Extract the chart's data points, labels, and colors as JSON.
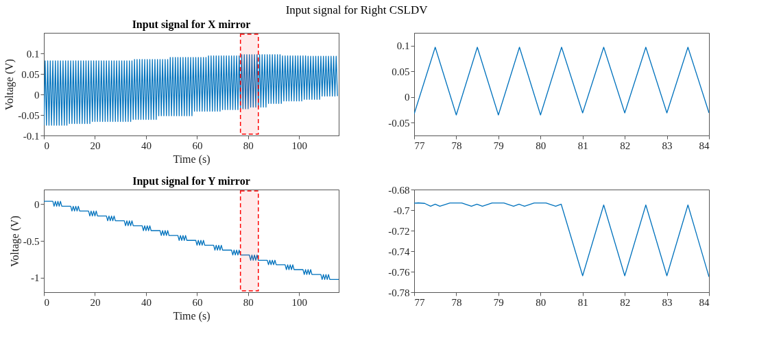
{
  "chart_data": [
    {
      "type": "line",
      "title": "Input signal for Right CSLDV",
      "subtitle": "Input signal for X mirror",
      "xlabel": "Time (s)",
      "ylabel": "Voltage (V)",
      "xlim": [
        0,
        115.5
      ],
      "xticks": [
        0,
        20,
        40,
        60,
        80,
        100
      ],
      "ylim": [
        -0.1,
        0.15
      ],
      "yticks": [
        -0.1,
        -0.05,
        0,
        0.05,
        0.1
      ],
      "bands": [
        {
          "axis": "x",
          "from": 77,
          "to": 84,
          "color": "#ff0000"
        }
      ],
      "x": [
        0,
        0.5,
        1,
        1.5,
        2,
        2.5,
        3,
        3.5,
        4,
        4.5,
        5,
        5.5,
        6,
        6.5,
        7,
        7.5,
        8,
        8.5,
        9,
        9.5,
        10,
        10.5,
        11,
        11.5,
        12,
        12.5,
        13,
        13.5,
        14,
        14.5,
        15,
        15.5,
        16,
        16.5,
        17,
        17.5,
        18,
        18.5,
        19,
        19.5,
        20,
        20.5,
        21,
        21.5,
        22,
        22.5,
        23,
        23.5,
        24,
        24.5,
        25,
        25.5,
        26,
        26.5,
        27,
        27.5,
        28,
        28.5,
        29,
        29.5,
        30,
        30.5,
        31,
        31.5,
        32,
        32.5,
        33,
        33.5,
        34,
        34.5,
        35,
        35.5,
        36,
        36.5,
        37,
        37.5,
        38,
        38.5,
        39,
        39.5,
        40,
        40.5,
        41,
        41.5,
        42,
        42.5,
        43,
        43.5,
        44,
        44.5,
        45,
        45.5,
        46,
        46.5,
        47,
        47.5,
        48,
        48.5,
        49,
        49.5,
        50,
        50.5,
        51,
        51.5,
        52,
        52.5,
        53,
        53.5,
        54,
        54.5,
        55,
        55.5,
        56,
        56.5,
        57,
        57.5,
        58,
        58.5,
        59,
        59.5,
        60,
        60.5,
        61,
        61.5,
        62,
        62.5,
        63,
        63.5,
        64,
        64.5,
        65,
        65.5,
        66,
        66.5,
        67,
        67.5,
        68,
        68.5,
        69,
        69.5,
        70,
        70.5,
        71,
        71.5,
        72,
        72.5,
        73,
        73.5,
        74,
        74.5,
        75,
        75.5,
        76,
        76.5,
        77,
        77.5,
        78,
        78.5,
        79,
        79.5,
        80,
        80.5,
        81,
        81.5,
        82,
        82.5,
        83,
        83.5,
        84,
        84.5,
        85,
        85.5,
        86,
        86.5,
        87,
        87.5,
        88,
        88.5,
        89,
        89.5,
        90,
        90.5,
        91,
        91.5,
        92,
        92.5,
        93,
        93.5,
        94,
        94.5,
        95,
        95.5,
        96,
        96.5,
        97,
        97.5,
        98,
        98.5,
        99,
        99.5,
        100,
        100.5,
        101,
        101.5,
        102,
        102.5,
        103,
        103.5,
        104,
        104.5,
        105,
        105.5,
        106,
        106.5,
        107,
        107.5,
        108,
        108.5,
        109,
        109.5,
        110,
        110.5,
        111,
        111.5,
        112,
        112.5,
        113,
        113.5,
        114,
        114.5,
        115
      ],
      "series": [
        {
          "color": "#0072bd",
          "values": [
            -0.075,
            0.082,
            -0.075,
            0.082,
            -0.075,
            0.082,
            -0.075,
            0.082,
            -0.075,
            0.082,
            -0.075,
            0.082,
            -0.075,
            0.082,
            -0.075,
            0.082,
            -0.075,
            0.082,
            -0.075,
            0.082,
            -0.071,
            0.082,
            -0.071,
            0.082,
            -0.071,
            0.082,
            -0.071,
            0.082,
            -0.071,
            0.082,
            -0.071,
            0.082,
            -0.071,
            0.082,
            -0.071,
            0.082,
            -0.071,
            0.082,
            -0.066,
            0.082,
            -0.066,
            0.082,
            -0.066,
            0.082,
            -0.066,
            0.082,
            -0.066,
            0.082,
            -0.066,
            0.082,
            -0.066,
            0.082,
            -0.066,
            0.082,
            -0.066,
            0.082,
            -0.066,
            0.082,
            -0.066,
            0.082,
            -0.066,
            0.082,
            -0.066,
            0.082,
            -0.066,
            0.082,
            -0.066,
            0.082,
            -0.066,
            0.082,
            -0.061,
            0.085,
            -0.061,
            0.085,
            -0.061,
            0.085,
            -0.061,
            0.085,
            -0.061,
            0.085,
            -0.061,
            0.085,
            -0.061,
            0.085,
            -0.061,
            0.085,
            -0.061,
            0.085,
            -0.061,
            0.085,
            -0.052,
            0.085,
            -0.052,
            0.085,
            -0.052,
            0.085,
            -0.052,
            0.085,
            -0.052,
            0.09,
            -0.052,
            0.09,
            -0.052,
            0.09,
            -0.052,
            0.09,
            -0.052,
            0.09,
            -0.052,
            0.09,
            -0.052,
            0.09,
            -0.052,
            0.09,
            -0.052,
            0.09,
            -0.052,
            0.09,
            -0.041,
            0.09,
            -0.041,
            0.09,
            -0.041,
            0.09,
            -0.041,
            0.09,
            -0.041,
            0.09,
            -0.041,
            0.094,
            -0.041,
            0.094,
            -0.041,
            0.094,
            -0.041,
            0.094,
            -0.041,
            0.094,
            -0.041,
            0.094,
            -0.037,
            0.094,
            -0.037,
            0.094,
            -0.037,
            0.094,
            -0.037,
            0.094,
            -0.037,
            0.094,
            -0.037,
            0.094,
            -0.037,
            0.094,
            -0.033,
            0.097,
            -0.035,
            0.097,
            -0.035,
            0.097,
            -0.035,
            0.097,
            -0.031,
            0.097,
            -0.031,
            0.097,
            -0.031,
            0.097,
            -0.031,
            0.097,
            -0.031,
            0.097,
            -0.031,
            0.097,
            -0.031,
            0.097,
            -0.022,
            0.097,
            -0.022,
            0.097,
            -0.022,
            0.097,
            -0.022,
            0.097,
            -0.022,
            0.097,
            -0.022,
            0.094,
            -0.016,
            0.094,
            -0.016,
            0.094,
            -0.016,
            0.094,
            -0.016,
            0.094,
            -0.016,
            0.094,
            -0.016,
            0.094,
            -0.016,
            0.094,
            -0.016,
            0.094,
            -0.012,
            0.094,
            -0.012,
            0.093,
            -0.012,
            0.093,
            -0.012,
            0.093,
            -0.012,
            0.093,
            -0.012,
            0.093,
            -0.012,
            0.093,
            -0.004,
            0.093,
            -0.004,
            0.093,
            -0.004,
            0.093,
            -0.004,
            0.093,
            -0.004,
            0.093,
            -0.004,
            0.093,
            -0.004
          ]
        }
      ]
    },
    {
      "type": "line",
      "xlim": [
        77,
        84
      ],
      "xticks": [
        77,
        78,
        79,
        80,
        81,
        82,
        83,
        84
      ],
      "ylim": [
        -0.075,
        0.125
      ],
      "yticks": [
        -0.05,
        0,
        0.05,
        0.1
      ],
      "x": [
        77,
        77.5,
        78,
        78.5,
        79,
        79.5,
        80,
        80.5,
        81,
        81.5,
        82,
        82.5,
        83,
        83.5,
        84
      ],
      "series": [
        {
          "color": "#0072bd",
          "values": [
            -0.033,
            0.097,
            -0.035,
            0.097,
            -0.035,
            0.097,
            -0.035,
            0.097,
            -0.031,
            0.097,
            -0.031,
            0.097,
            -0.031,
            0.097,
            -0.031
          ]
        }
      ]
    },
    {
      "type": "line",
      "title": "Input signal for Y mirror",
      "xlabel": "Time (s)",
      "ylabel": "Voltage (V)",
      "xlim": [
        0,
        115.5
      ],
      "xticks": [
        0,
        20,
        40,
        60,
        80,
        100
      ],
      "ylim": [
        -1.2,
        0.2
      ],
      "yticks": [
        -1,
        -0.5,
        0
      ],
      "bands": [
        {
          "axis": "x",
          "from": 77,
          "to": 84,
          "color": "#ff0000"
        }
      ],
      "x": [
        0,
        3.5,
        4,
        4.5,
        5,
        5.5,
        6,
        6.5,
        7,
        10.5,
        11,
        11.5,
        12,
        12.5,
        13,
        13.5,
        14,
        17.5,
        18,
        18.5,
        19,
        19.5,
        20,
        20.5,
        21,
        24.5,
        25,
        25.5,
        26,
        26.5,
        27,
        27.5,
        28,
        31.5,
        32,
        32.5,
        33,
        33.5,
        34,
        34.5,
        35,
        38.5,
        39,
        39.5,
        40,
        40.5,
        41,
        41.5,
        42,
        45.5,
        46,
        46.5,
        47,
        47.5,
        48,
        48.5,
        49,
        52.5,
        53,
        53.5,
        54,
        54.5,
        55,
        55.5,
        56,
        59.5,
        60,
        60.5,
        61,
        61.5,
        62,
        62.5,
        63,
        66.5,
        67,
        67.5,
        68,
        68.5,
        69,
        69.5,
        70,
        73.5,
        74,
        74.5,
        75,
        75.5,
        76,
        76.5,
        77,
        80.5,
        81,
        81.5,
        82,
        82.5,
        83,
        83.5,
        84,
        87.5,
        88,
        88.5,
        89,
        89.5,
        90,
        90.5,
        91,
        94.5,
        95,
        95.5,
        96,
        96.5,
        97,
        97.5,
        98,
        101.5,
        102,
        102.5,
        103,
        103.5,
        104,
        104.5,
        105,
        108.5,
        109,
        109.5,
        110,
        110.5,
        111,
        111.5,
        112,
        115.5
      ],
      "series": [
        {
          "color": "#0072bd",
          "values": [
            0.04,
            0.04,
            -0.027,
            0.04,
            -0.027,
            0.04,
            -0.027,
            0.04,
            -0.027,
            -0.027,
            -0.093,
            -0.027,
            -0.093,
            -0.027,
            -0.093,
            -0.027,
            -0.093,
            -0.093,
            -0.16,
            -0.093,
            -0.16,
            -0.093,
            -0.16,
            -0.093,
            -0.16,
            -0.16,
            -0.226,
            -0.16,
            -0.226,
            -0.16,
            -0.226,
            -0.16,
            -0.226,
            -0.226,
            -0.293,
            -0.226,
            -0.293,
            -0.226,
            -0.293,
            -0.226,
            -0.293,
            -0.293,
            -0.36,
            -0.293,
            -0.36,
            -0.293,
            -0.36,
            -0.293,
            -0.36,
            -0.36,
            -0.426,
            -0.36,
            -0.426,
            -0.36,
            -0.426,
            -0.36,
            -0.426,
            -0.426,
            -0.493,
            -0.426,
            -0.493,
            -0.426,
            -0.493,
            -0.426,
            -0.493,
            -0.493,
            -0.559,
            -0.493,
            -0.559,
            -0.493,
            -0.559,
            -0.493,
            -0.559,
            -0.559,
            -0.626,
            -0.559,
            -0.626,
            -0.559,
            -0.626,
            -0.559,
            -0.626,
            -0.626,
            -0.693,
            -0.626,
            -0.693,
            -0.626,
            -0.693,
            -0.626,
            -0.693,
            -0.693,
            -0.764,
            -0.693,
            -0.764,
            -0.693,
            -0.764,
            -0.693,
            -0.764,
            -0.764,
            -0.826,
            -0.764,
            -0.826,
            -0.764,
            -0.826,
            -0.764,
            -0.826,
            -0.826,
            -0.892,
            -0.826,
            -0.892,
            -0.826,
            -0.892,
            -0.826,
            -0.892,
            -0.892,
            -0.959,
            -0.892,
            -0.959,
            -0.892,
            -0.959,
            -0.892,
            -0.959,
            -0.959,
            -1.026,
            -0.959,
            -1.026,
            -0.959,
            -1.026,
            -0.959,
            -1.026,
            -1.026
          ]
        }
      ]
    },
    {
      "type": "line",
      "xlim": [
        77,
        84
      ],
      "xticks": [
        77,
        78,
        79,
        80,
        81,
        82,
        83,
        84
      ],
      "ylim": [
        -0.78,
        -0.68
      ],
      "yticks": [
        -0.78,
        -0.76,
        -0.74,
        -0.72,
        -0.7,
        -0.68
      ],
      "x": [
        77,
        77.1,
        77.25,
        77.39,
        77.5,
        77.61,
        77.85,
        78.13,
        78.36,
        78.49,
        78.62,
        78.85,
        79.13,
        79.36,
        79.49,
        79.62,
        79.85,
        80.13,
        80.36,
        80.49,
        81,
        81.5,
        82,
        82.5,
        83,
        83.5,
        84
      ],
      "series": [
        {
          "color": "#0072bd",
          "values": [
            -0.6932,
            -0.693,
            -0.6935,
            -0.6963,
            -0.6942,
            -0.6963,
            -0.6931,
            -0.6931,
            -0.6963,
            -0.6942,
            -0.6963,
            -0.6931,
            -0.6931,
            -0.6963,
            -0.6942,
            -0.6963,
            -0.6931,
            -0.6931,
            -0.6963,
            -0.6942,
            -0.764,
            -0.695,
            -0.764,
            -0.695,
            -0.764,
            -0.695,
            -0.765
          ]
        }
      ]
    }
  ]
}
